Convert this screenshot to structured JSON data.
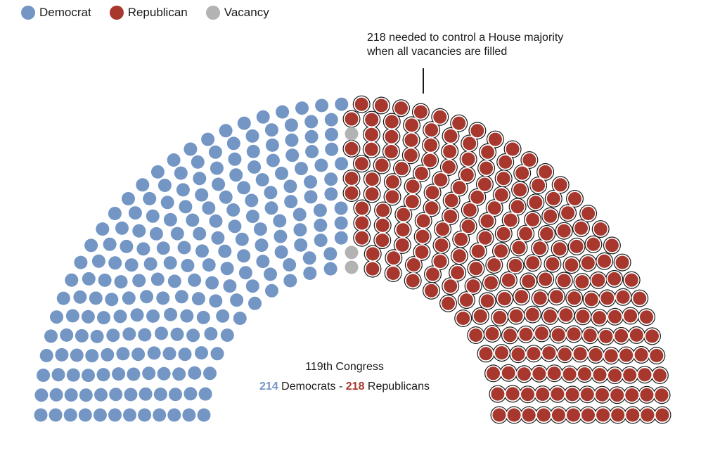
{
  "legend": [
    {
      "label": "Democrat",
      "color": "#7396c5"
    },
    {
      "label": "Republican",
      "color": "#a8382e"
    },
    {
      "label": "Vacancy",
      "color": "#b3b3b3"
    }
  ],
  "annotation": {
    "line1": "218 needed to control a House majority",
    "line2": "when all vacancies are filled"
  },
  "center": {
    "title": "119th Congress",
    "dem_count": "214",
    "dem_label": "Democrats",
    "separator": "-",
    "rep_count": "218",
    "rep_label": "Republicans"
  },
  "chart_data": {
    "type": "parliament",
    "total_seats": 435,
    "majority_threshold": 218,
    "seats": [
      {
        "party": "Democrat",
        "count": 214,
        "color": "#7396c5"
      },
      {
        "party": "Vacancy",
        "count": 3,
        "color": "#b3b3b3"
      },
      {
        "party": "Republican",
        "count": 218,
        "color": "#a8382e"
      }
    ]
  }
}
